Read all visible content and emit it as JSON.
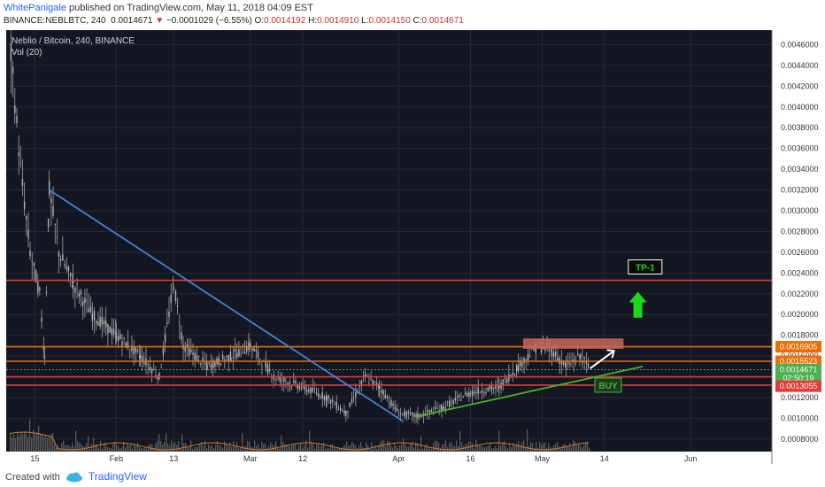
{
  "header": {
    "author": "WhitePanigale",
    "published": "published on TradingView.com, May 11, 2018 04:09 EST",
    "symbol": "BINANCE:NEBLBTC, 240",
    "last": "0.0014671",
    "change": "−0.0001029 (−6.55%)",
    "o_label": "O:",
    "o_value": "0.0014192",
    "h_label": "H:",
    "h_value": "0.0014910",
    "l_label": "L:",
    "l_value": "0.0014150",
    "c_label": "C:",
    "c_value": "0.0014671"
  },
  "footer": {
    "created_with": "Created with",
    "brand": "TradingView"
  },
  "colors": {
    "background": "#131722",
    "grid": "#262a36",
    "candle": "#b8b8b8",
    "volume": "#5a5a5a",
    "volume_ma": "#d0782a",
    "downtrend": "#4a7fd8",
    "uptrend": "#4caf2a",
    "resistance_red": "#e53935",
    "resistance_orange": "#ef6c00",
    "tp_box": "#c8665a",
    "arrow_green": "#1ed81e",
    "buy_green": "#4caf50"
  },
  "chart_data": {
    "type": "candlestick",
    "title": "Neblio / Bitcoin, 240, BINANCE",
    "indicator": "Vol (20)",
    "x_ticks": [
      "15",
      "Feb",
      "13",
      "Mar",
      "12",
      "Apr",
      "16",
      "May",
      "14",
      "Jun"
    ],
    "y_ticks": [
      "0.0046000",
      "0.0044000",
      "0.0042000",
      "0.0040000",
      "0.0038000",
      "0.0036000",
      "0.0034000",
      "0.0032000",
      "0.0030000",
      "0.0028000",
      "0.0026000",
      "0.0024000",
      "0.0022000",
      "0.0020000",
      "0.0018000",
      "0.0016000",
      "0.0014000",
      "0.0012000",
      "0.0010000",
      "0.0008000"
    ],
    "ylim": [
      0.00068,
      0.00474
    ],
    "price_path": [
      {
        "x": "Jan 10",
        "y": 0.0045
      },
      {
        "x": "Jan 12",
        "y": 0.0034
      },
      {
        "x": "Jan 14",
        "y": 0.0026
      },
      {
        "x": "Jan 16",
        "y": 0.0022
      },
      {
        "x": "Jan 17",
        "y": 0.0016
      },
      {
        "x": "Jan 18",
        "y": 0.0032
      },
      {
        "x": "Jan 20",
        "y": 0.0026
      },
      {
        "x": "Jan 23",
        "y": 0.0023
      },
      {
        "x": "Jan 27",
        "y": 0.002
      },
      {
        "x": "Feb 1",
        "y": 0.0018
      },
      {
        "x": "Feb 6",
        "y": 0.0016
      },
      {
        "x": "Feb 10",
        "y": 0.0014
      },
      {
        "x": "Feb 13",
        "y": 0.0023
      },
      {
        "x": "Feb 15",
        "y": 0.0017
      },
      {
        "x": "Feb 20",
        "y": 0.0015
      },
      {
        "x": "Feb 25",
        "y": 0.0016
      },
      {
        "x": "Mar 1",
        "y": 0.0017
      },
      {
        "x": "Mar 6",
        "y": 0.0014
      },
      {
        "x": "Mar 12",
        "y": 0.0013
      },
      {
        "x": "Mar 17",
        "y": 0.0012
      },
      {
        "x": "Mar 21",
        "y": 0.00105
      },
      {
        "x": "Mar 25",
        "y": 0.0014
      },
      {
        "x": "Mar 28",
        "y": 0.0013
      },
      {
        "x": "Apr 1",
        "y": 0.00105
      },
      {
        "x": "Apr 5",
        "y": 0.00102
      },
      {
        "x": "Apr 10",
        "y": 0.0011
      },
      {
        "x": "Apr 16",
        "y": 0.00125
      },
      {
        "x": "Apr 22",
        "y": 0.0013
      },
      {
        "x": "Apr 26",
        "y": 0.0015
      },
      {
        "x": "Apr 30",
        "y": 0.0017
      },
      {
        "x": "May 3",
        "y": 0.00165
      },
      {
        "x": "May 6",
        "y": 0.0015
      },
      {
        "x": "May 9",
        "y": 0.0016
      },
      {
        "x": "May 11",
        "y": 0.00147
      }
    ],
    "horizontal_lines": [
      {
        "name": "TP-1 resistance",
        "y": 0.00233,
        "color": "#e53935",
        "label": "TP-1"
      },
      {
        "name": "orange resistance high",
        "y": 0.00169,
        "color": "#ef6c00"
      },
      {
        "name": "orange resistance low",
        "y": 0.00155,
        "color": "#ef6c00"
      },
      {
        "name": "red support high",
        "y": 0.0014,
        "color": "#e53935"
      },
      {
        "name": "red support low",
        "y": 0.00132,
        "color": "#e53935"
      }
    ],
    "trend_lines": [
      {
        "name": "downtrend",
        "color": "#4a7fd8",
        "x1": "Jan 18",
        "y1": 0.0032,
        "x2": "Apr 2",
        "y2": 0.00097
      },
      {
        "name": "uptrend",
        "color": "#4caf2a",
        "x1": "Apr 5",
        "y1": 0.00102,
        "x2": "May 22",
        "y2": 0.0015
      }
    ],
    "tp_box": {
      "x1": "Apr 27",
      "x2": "May 18",
      "y1": 0.00167,
      "y2": 0.00177
    },
    "price_labels": [
      {
        "text": "0.0016905",
        "y": 0.00169,
        "bg": "#ef6c00"
      },
      {
        "text": "0.0015523",
        "y": 0.00155,
        "bg": "#ef6c00"
      },
      {
        "text": "0.0014671",
        "y": 0.00147,
        "bg": "#4caf50"
      },
      {
        "text": "02:50:19",
        "y": 0.00139,
        "bg": "#4caf50"
      },
      {
        "text": "0.0013055",
        "y": 0.00131,
        "bg": "#e53935"
      }
    ],
    "annotations": {
      "tp_label": "TP-1",
      "buy_label": "BUY"
    }
  }
}
